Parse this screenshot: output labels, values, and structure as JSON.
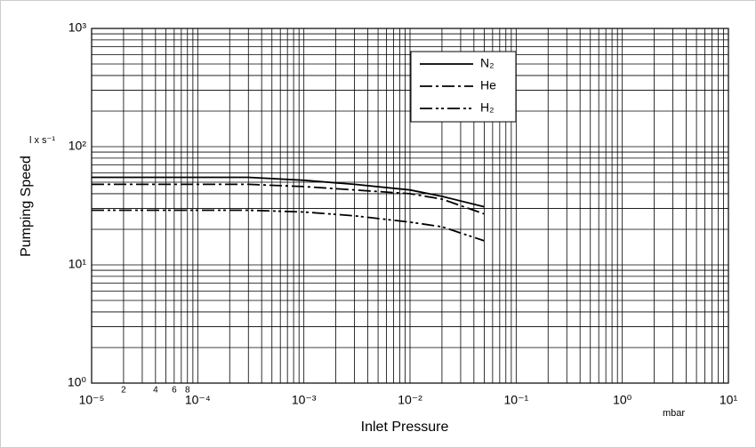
{
  "chart_data": {
    "type": "line",
    "xlabel": "Inlet Pressure",
    "ylabel": "Pumping Speed",
    "x_unit": "mbar",
    "y_unit": "l x s⁻¹",
    "xscale": "log",
    "yscale": "log",
    "grid": true,
    "minor_grid": true,
    "legend": "upper center",
    "xlim": [
      1e-05,
      10
    ],
    "ylim": [
      1,
      1000
    ],
    "xticks": [
      {
        "value": 1e-05,
        "label": "10⁻⁵"
      },
      {
        "value": 0.0001,
        "label": "10⁻⁴"
      },
      {
        "value": 0.001,
        "label": "10⁻³"
      },
      {
        "value": 0.01,
        "label": "10⁻²"
      },
      {
        "value": 0.1,
        "label": "10⁻¹"
      },
      {
        "value": 1,
        "label": "10⁰"
      },
      {
        "value": 10,
        "label": "10¹"
      }
    ],
    "xminorticks": [
      {
        "value": 2e-05,
        "label": "2"
      },
      {
        "value": 4e-05,
        "label": "4"
      },
      {
        "value": 6e-05,
        "label": "6"
      },
      {
        "value": 8e-05,
        "label": "8"
      }
    ],
    "yticks": [
      {
        "value": 1,
        "label": "10⁰"
      },
      {
        "value": 10,
        "label": "10¹"
      },
      {
        "value": 100,
        "label": "10²"
      },
      {
        "value": 1000,
        "label": "10³"
      }
    ],
    "x": [
      1e-05,
      0.0001,
      0.0003,
      0.001,
      0.003,
      0.01,
      0.02,
      0.05
    ],
    "series": [
      {
        "name": "N₂",
        "color": "#000000",
        "dash": "none",
        "values": [
          55,
          55,
          55,
          52,
          48,
          43,
          38,
          31
        ]
      },
      {
        "name": "He",
        "color": "#000000",
        "dash": "14 4 3 4",
        "values": [
          48,
          48,
          48,
          46,
          43,
          40,
          36,
          27
        ]
      },
      {
        "name": "H₂",
        "color": "#000000",
        "dash": "14 4 3 3 3 4",
        "values": [
          29,
          29,
          29,
          28,
          26,
          23,
          21,
          16
        ]
      }
    ]
  }
}
